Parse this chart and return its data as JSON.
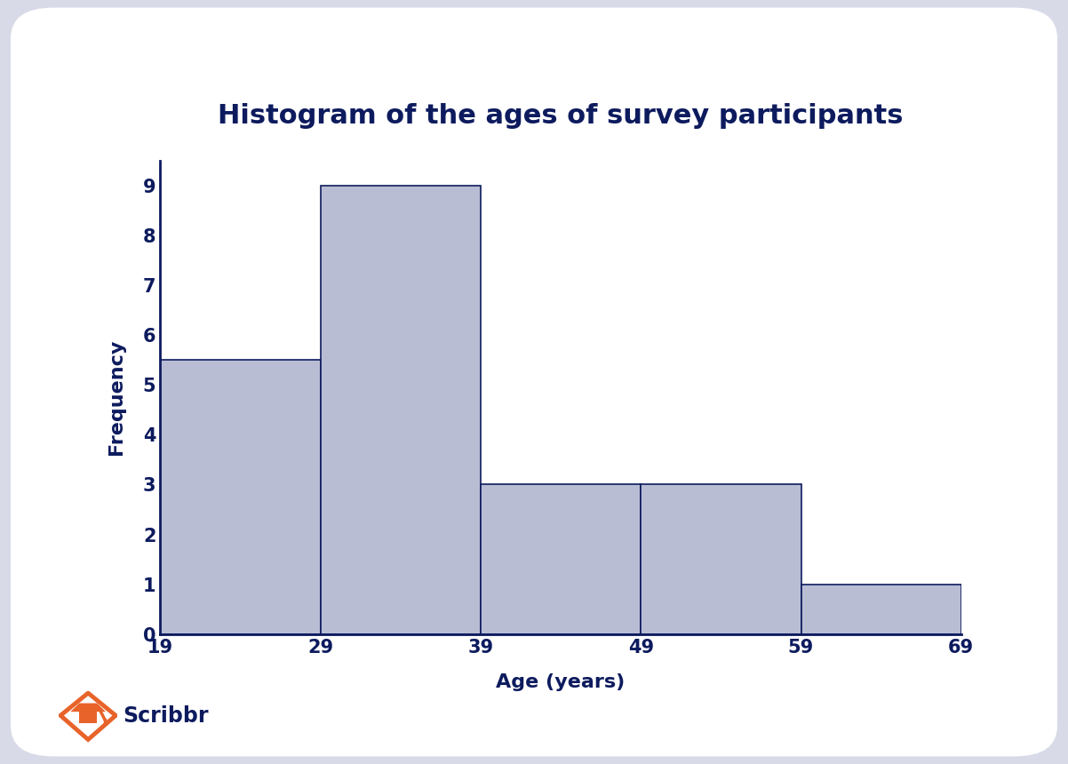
{
  "title": "Histogram of the ages of survey participants",
  "xlabel": "Age (years)",
  "ylabel": "Frequency",
  "bar_edges": [
    19,
    29,
    39,
    49,
    59,
    69
  ],
  "frequencies": [
    5.5,
    9,
    3,
    3,
    1
  ],
  "bar_color": "#b8bdd4",
  "bar_edgecolor": "#ffffff",
  "axis_color": "#0d1b5e",
  "title_color": "#0d1b5e",
  "label_color": "#0d1b5e",
  "tick_color": "#0d1b5e",
  "background_color": "#d8dae8",
  "card_color": "#ffffff",
  "ylim": [
    0,
    9.5
  ],
  "yticks": [
    0,
    1,
    2,
    3,
    4,
    5,
    6,
    7,
    8,
    9
  ],
  "title_fontsize": 22,
  "label_fontsize": 16,
  "tick_fontsize": 15,
  "spine_linewidth": 2.0,
  "scribbr_text": "Scribbr",
  "scribbr_text_color": "#0d1b5e",
  "scribbr_icon_color": "#e8632a"
}
